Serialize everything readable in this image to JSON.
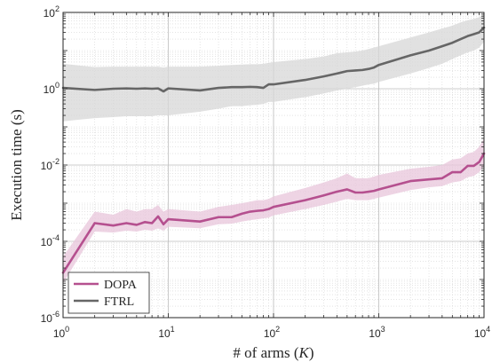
{
  "chart_data": {
    "type": "line",
    "xlabel": "# of arms (K)",
    "xlabel_parts": {
      "prefix": "# of arms (",
      "var": "K",
      "suffix": ")"
    },
    "ylabel": "Execution time (s)",
    "x_scale": "log",
    "y_scale": "log",
    "xlim": [
      1,
      10000
    ],
    "ylim": [
      1e-06,
      100
    ],
    "grid": true,
    "legend_position": "bottom-left",
    "x_ticks": [
      {
        "base": "10",
        "exp": "0",
        "value": 1
      },
      {
        "base": "10",
        "exp": "1",
        "value": 10
      },
      {
        "base": "10",
        "exp": "2",
        "value": 100
      },
      {
        "base": "10",
        "exp": "3",
        "value": 1000
      },
      {
        "base": "10",
        "exp": "4",
        "value": 10000
      }
    ],
    "y_ticks": [
      {
        "base": "10",
        "exp": "-6",
        "value": 1e-06
      },
      {
        "base": "10",
        "exp": "-4",
        "value": 0.0001
      },
      {
        "base": "10",
        "exp": "-2",
        "value": 0.01
      },
      {
        "base": "10",
        "exp": "0",
        "value": 1
      },
      {
        "base": "10",
        "exp": "2",
        "value": 100
      }
    ],
    "series": [
      {
        "name": "DOPA",
        "color": "#b5508f",
        "band_color": "#e8c6db",
        "x": [
          1,
          2,
          3,
          4,
          5,
          6,
          7,
          8,
          9,
          10,
          20,
          30,
          40,
          50,
          60,
          70,
          80,
          90,
          100,
          200,
          300,
          400,
          500,
          600,
          700,
          800,
          900,
          1000,
          2000,
          3000,
          4000,
          5000,
          6000,
          7000,
          8000,
          9000,
          10000
        ],
        "y": [
          1.5e-05,
          0.0003,
          0.00026,
          0.0003,
          0.00027,
          0.00032,
          0.0003,
          0.00045,
          0.00028,
          0.00038,
          0.00033,
          0.00043,
          0.00043,
          0.00053,
          0.0006,
          0.00063,
          0.00065,
          0.0007,
          0.0008,
          0.0012,
          0.0016,
          0.002,
          0.0023,
          0.0019,
          0.0019,
          0.002,
          0.0021,
          0.0023,
          0.0038,
          0.0042,
          0.0045,
          0.0065,
          0.0065,
          0.0095,
          0.0095,
          0.012,
          0.02
        ],
        "lower": [
          8e-06,
          0.00018,
          0.00017,
          0.00019,
          0.00018,
          0.0002,
          0.00019,
          0.00022,
          0.00019,
          0.00024,
          0.00022,
          0.00028,
          0.00029,
          0.00033,
          0.00036,
          0.00038,
          0.0004,
          0.00042,
          0.00048,
          0.0007,
          0.0009,
          0.0011,
          0.0013,
          0.0012,
          0.0012,
          0.0012,
          0.0013,
          0.0014,
          0.0022,
          0.0026,
          0.0028,
          0.0035,
          0.0038,
          0.0048,
          0.0052,
          0.0065,
          0.0095
        ],
        "upper": [
          4e-05,
          0.0006,
          0.0005,
          0.0007,
          0.0006,
          0.0007,
          0.0007,
          0.0009,
          0.0006,
          0.0007,
          0.0006,
          0.0008,
          0.0009,
          0.001,
          0.0011,
          0.0012,
          0.0012,
          0.0013,
          0.0015,
          0.0025,
          0.0035,
          0.0045,
          0.006,
          0.0045,
          0.0045,
          0.0045,
          0.005,
          0.0055,
          0.008,
          0.009,
          0.01,
          0.014,
          0.015,
          0.02,
          0.022,
          0.03,
          0.05
        ]
      },
      {
        "name": "FTRL",
        "color": "#666666",
        "band_color": "#d7d7d7",
        "x": [
          1,
          2,
          3,
          4,
          5,
          6,
          7,
          8,
          9,
          10,
          20,
          30,
          40,
          50,
          60,
          70,
          80,
          90,
          100,
          200,
          300,
          400,
          500,
          600,
          700,
          800,
          900,
          1000,
          2000,
          3000,
          4000,
          5000,
          6000,
          7000,
          8000,
          9000,
          10000
        ],
        "y": [
          1.05,
          0.93,
          1.0,
          1.02,
          1.0,
          1.02,
          1.0,
          1.02,
          0.85,
          1.02,
          0.9,
          1.05,
          1.1,
          1.1,
          1.12,
          1.1,
          1.05,
          1.3,
          1.3,
          1.7,
          2.1,
          2.5,
          2.9,
          3.0,
          3.1,
          3.3,
          3.6,
          4.2,
          7.5,
          10,
          13,
          16,
          20,
          24,
          27,
          30,
          40
        ],
        "lower": [
          0.14,
          0.17,
          0.18,
          0.19,
          0.19,
          0.19,
          0.19,
          0.2,
          0.2,
          0.2,
          0.25,
          0.3,
          0.35,
          0.35,
          0.37,
          0.38,
          0.4,
          0.45,
          0.45,
          0.6,
          0.75,
          0.9,
          1.0,
          1.1,
          1.2,
          1.3,
          1.35,
          1.5,
          2.5,
          3.5,
          4.5,
          6,
          7.5,
          9,
          10,
          12,
          17
        ],
        "upper": [
          4.5,
          3.7,
          3.8,
          3.8,
          3.8,
          3.8,
          3.8,
          3.8,
          3.6,
          3.8,
          3.8,
          4.0,
          4.2,
          4.3,
          4.4,
          4.4,
          4.5,
          4.8,
          5.0,
          6.0,
          7.0,
          8.5,
          9.0,
          9.5,
          10,
          11,
          12,
          13,
          22,
          30,
          38,
          45,
          55,
          62,
          68,
          75,
          90
        ]
      }
    ]
  }
}
